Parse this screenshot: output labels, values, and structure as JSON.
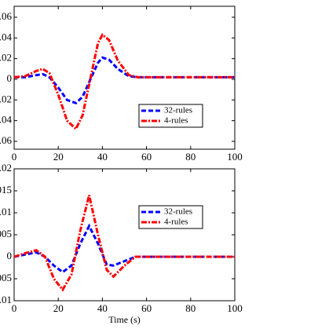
{
  "chart_data": [
    {
      "type": "line",
      "x": [
        0,
        5,
        10,
        13,
        16,
        20,
        24,
        28,
        31,
        35,
        38,
        40,
        43,
        47,
        52,
        56,
        60,
        70,
        80,
        90,
        100
      ],
      "series": [
        {
          "name": "32-rules",
          "color": "#0000ff",
          "dash": "6,3",
          "values": [
            0.002,
            0.002,
            0.004,
            0.005,
            0.002,
            -0.008,
            -0.02,
            -0.023,
            -0.017,
            0.002,
            0.016,
            0.021,
            0.019,
            0.01,
            0.003,
            0.002,
            0.002,
            0.002,
            0.002,
            0.002,
            0.002
          ]
        },
        {
          "name": "4-rules",
          "color": "#ff0000",
          "dash": "7,2,2,2",
          "values": [
            0.002,
            0.003,
            0.008,
            0.01,
            0.006,
            -0.015,
            -0.04,
            -0.048,
            -0.035,
            0.005,
            0.035,
            0.043,
            0.038,
            0.018,
            0.004,
            0.002,
            0.002,
            0.002,
            0.002,
            0.002,
            0.002
          ]
        }
      ],
      "xlim": [
        0,
        100
      ],
      "xticks": [
        0,
        20,
        40,
        60,
        80,
        100
      ],
      "ylim": [
        -0.0676,
        0.0706
      ],
      "yticks": [
        {
          "value": 0.06,
          "label": ".06"
        },
        {
          "value": 0.04,
          "label": ".04"
        },
        {
          "value": 0.02,
          "label": ".02"
        },
        0,
        {
          "value": -0.02,
          "label": ".02"
        },
        {
          "value": -0.04,
          "label": ".04"
        },
        {
          "value": -0.06,
          "label": ".06"
        }
      ],
      "legend": "lower right"
    },
    {
      "type": "line",
      "x": [
        0,
        5,
        10,
        14,
        18,
        22,
        26,
        30,
        34,
        38,
        42,
        45,
        50,
        55,
        60,
        70,
        80,
        90,
        100
      ],
      "series": [
        {
          "name": "32-rules",
          "color": "#0000ff",
          "dash": "6,3",
          "values": [
            0,
            0.0005,
            0.001,
            0,
            -0.002,
            -0.0035,
            -0.002,
            0.003,
            0.007,
            0.003,
            -0.0018,
            -0.002,
            -0.001,
            0,
            0,
            0,
            0,
            0,
            0
          ]
        },
        {
          "name": "4-rules",
          "color": "#ff0000",
          "dash": "7,2,2,2",
          "values": [
            0,
            0.0008,
            0.0015,
            0,
            -0.005,
            -0.0075,
            -0.004,
            0.006,
            0.014,
            0.005,
            -0.003,
            -0.0045,
            -0.002,
            0,
            0,
            0,
            0,
            0,
            0
          ]
        }
      ],
      "xlim": [
        0,
        100
      ],
      "xticks": [
        0,
        20,
        40,
        60,
        80,
        100
      ],
      "ylim": [
        -0.01,
        0.02
      ],
      "yticks": [
        {
          "value": 0.02,
          "label": ".02"
        },
        {
          "value": 0.015,
          "label": ".015"
        },
        {
          "value": 0.01,
          "label": ".01"
        },
        {
          "value": 0.005,
          "label": ".005"
        },
        0,
        {
          "value": -0.005,
          "label": ".005"
        },
        {
          "value": -0.01,
          "label": ".01"
        }
      ],
      "xlabel": "Time (s)",
      "legend": "upper right"
    }
  ]
}
